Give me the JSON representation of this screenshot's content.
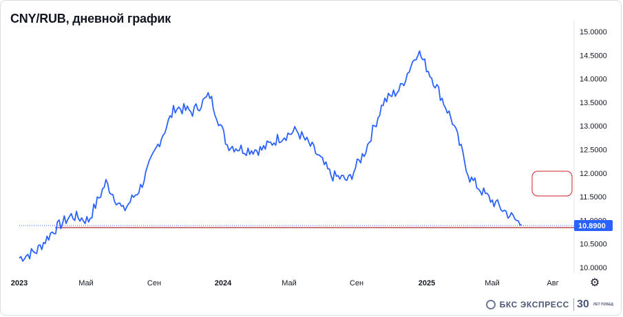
{
  "header": {
    "title": "CNY/RUB, дневной график"
  },
  "last_price_label": "10.8900",
  "logo": {
    "text": "БКС ЭКСПРЕСС",
    "years": "30",
    "years_sub": "ЛЕТ ПОБЕД"
  },
  "icons": {
    "settings": "gear-icon",
    "logo": "bks-logo-icon"
  },
  "colors": {
    "line": "#2962ff",
    "price_label_bg": "#2962ff",
    "last_price_line": "#b22833",
    "annotation_box": "#cc1f1f"
  },
  "chart_data": {
    "type": "line",
    "title": "CNY/RUB, дневной график",
    "xlabel": "",
    "ylabel": "",
    "grid": false,
    "ylim": [
      9.93,
      15.12
    ],
    "x_ticks": [
      "2023",
      "Май",
      "Сен",
      "2024",
      "Май",
      "Сен",
      "2025",
      "Май",
      "Авг"
    ],
    "y_ticks": [
      "15.0000",
      "14.5000",
      "14.0000",
      "13.5000",
      "13.0000",
      "12.5000",
      "12.0000",
      "11.5000",
      "11.0000",
      "10.5000",
      "10.0000"
    ],
    "last_value": 10.89,
    "series": [
      {
        "x": [
          "2023-01",
          "2023-02",
          "2023-03",
          "2023-04",
          "2023-05",
          "2023-06",
          "2023-07",
          "2023-08",
          "2023-09",
          "2023-10",
          "2023-11",
          "2023-12",
          "2024-01",
          "2024-02",
          "2024-03",
          "2024-04",
          "2024-05",
          "2024-06",
          "2024-07",
          "2024-08",
          "2024-09",
          "2024-10",
          "2024-11",
          "2024-12",
          "2025-01",
          "2025-02",
          "2025-03",
          "2025-04",
          "2025-05",
          "2025-06"
        ],
        "values": [
          10.2,
          10.35,
          10.8,
          11.1,
          11.0,
          11.8,
          11.2,
          11.7,
          12.6,
          13.4,
          13.3,
          13.65,
          12.6,
          12.5,
          12.5,
          12.75,
          12.9,
          12.5,
          11.95,
          11.85,
          12.5,
          13.5,
          13.8,
          14.6,
          13.9,
          13.1,
          11.9,
          11.5,
          11.2,
          10.9
        ]
      }
    ]
  }
}
